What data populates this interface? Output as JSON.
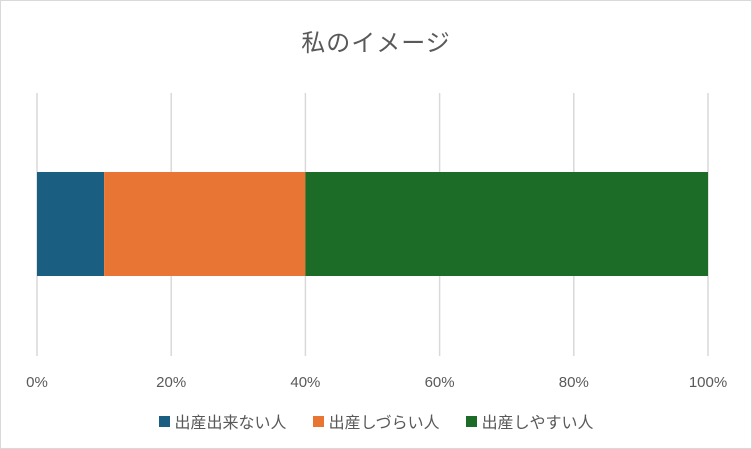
{
  "chart_data": {
    "type": "bar",
    "orientation": "horizontal",
    "stacking": "percent",
    "title": "私のイメージ",
    "categories": [
      ""
    ],
    "series": [
      {
        "name": "出産出来ない人",
        "values": [
          10
        ],
        "color": "#1a5e82"
      },
      {
        "name": "出産しづらい人",
        "values": [
          30
        ],
        "color": "#e87533"
      },
      {
        "name": "出産しやすい人",
        "values": [
          60
        ],
        "color": "#1c6b26"
      }
    ],
    "xlim": [
      0,
      100
    ],
    "x_ticks": [
      "0%",
      "20%",
      "40%",
      "60%",
      "80%",
      "100%"
    ],
    "grid": "vertical",
    "legend": "bottom"
  }
}
